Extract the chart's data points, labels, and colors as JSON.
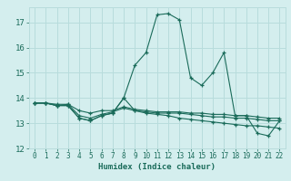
{
  "xlabel": "Humidex (Indice chaleur)",
  "ylabel": "",
  "background_color": "#d4eeee",
  "grid_color": "#b8dcdc",
  "line_color": "#1a6b5a",
  "xlim": [
    -0.5,
    22.5
  ],
  "ylim": [
    12,
    17.6
  ],
  "yticks": [
    12,
    13,
    14,
    15,
    16,
    17
  ],
  "xticks": [
    0,
    1,
    2,
    3,
    4,
    5,
    6,
    7,
    8,
    9,
    10,
    11,
    12,
    13,
    14,
    15,
    16,
    17,
    18,
    19,
    20,
    21,
    22
  ],
  "series": [
    [
      13.8,
      13.8,
      13.7,
      13.7,
      13.2,
      13.1,
      13.3,
      13.4,
      14.0,
      15.3,
      15.8,
      17.3,
      17.35,
      17.1,
      14.8,
      14.5,
      15.0,
      15.8,
      13.3,
      13.3,
      12.6,
      12.5,
      13.1
    ],
    [
      13.8,
      13.8,
      13.7,
      13.7,
      13.2,
      13.1,
      13.3,
      13.4,
      14.0,
      13.5,
      13.4,
      13.35,
      13.3,
      13.2,
      13.15,
      13.1,
      13.05,
      13.0,
      12.95,
      12.9,
      12.9,
      12.85,
      12.8
    ],
    [
      13.8,
      13.8,
      13.7,
      13.75,
      13.3,
      13.2,
      13.35,
      13.45,
      13.6,
      13.5,
      13.45,
      13.4,
      13.4,
      13.4,
      13.35,
      13.3,
      13.25,
      13.25,
      13.2,
      13.2,
      13.15,
      13.1,
      13.1
    ],
    [
      13.8,
      13.8,
      13.75,
      13.75,
      13.5,
      13.4,
      13.5,
      13.5,
      13.65,
      13.55,
      13.5,
      13.45,
      13.45,
      13.45,
      13.4,
      13.4,
      13.35,
      13.35,
      13.3,
      13.3,
      13.25,
      13.2,
      13.2
    ]
  ]
}
